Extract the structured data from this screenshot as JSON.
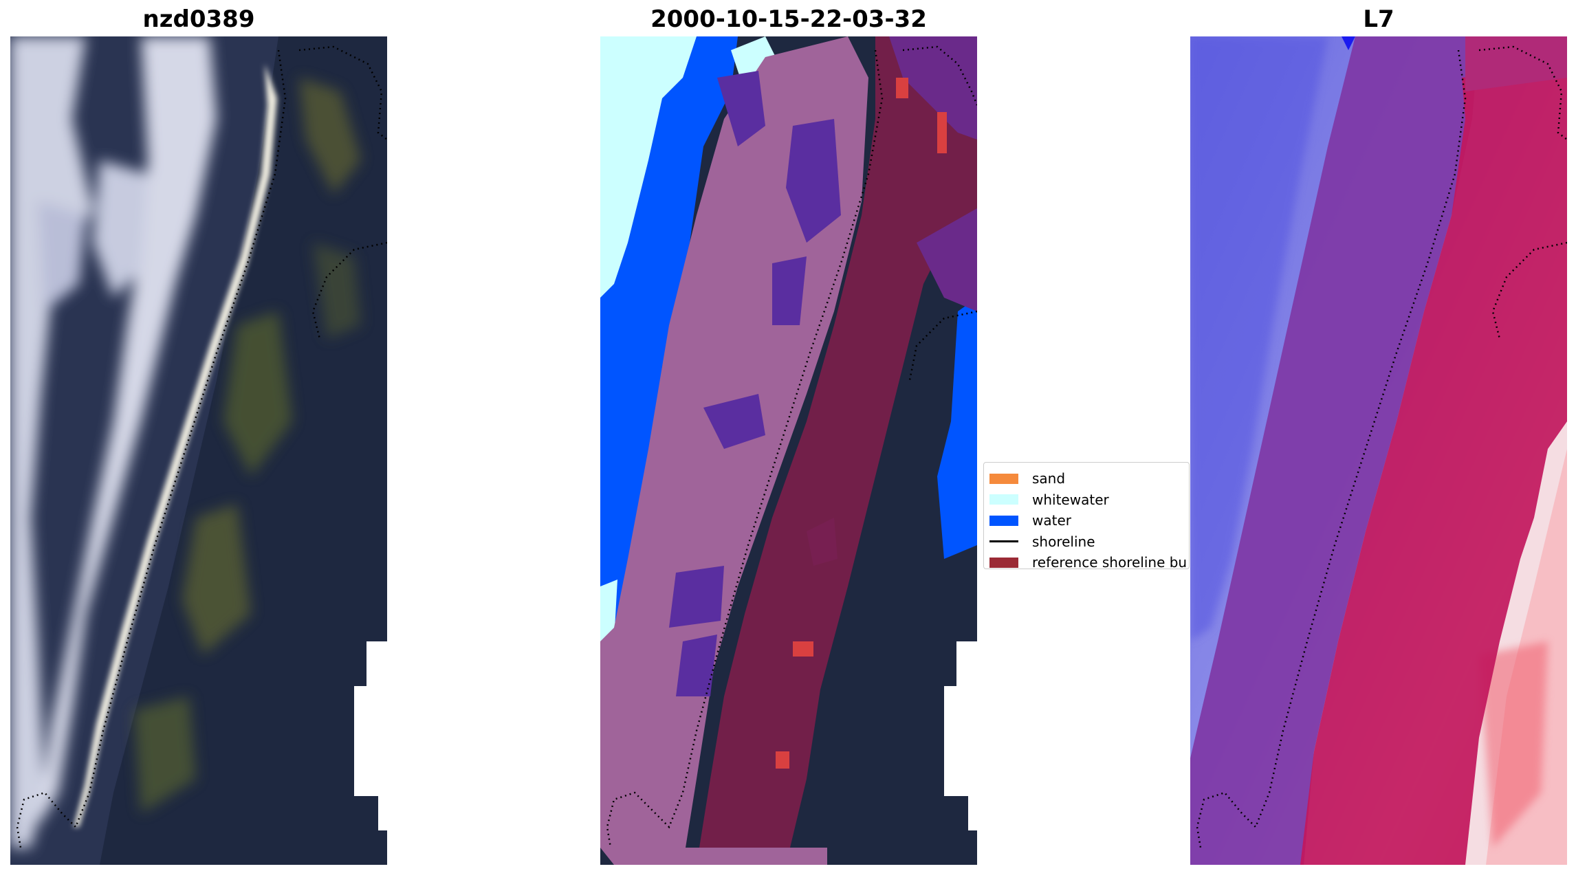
{
  "panels": [
    {
      "title": "nzd0389"
    },
    {
      "title": "2000-10-15-22-03-32"
    },
    {
      "title": "L7"
    }
  ],
  "legend": {
    "items": [
      {
        "label": "sand",
        "color": "#f58a3c",
        "kind": "patch"
      },
      {
        "label": "whitewater",
        "color": "#ccffff",
        "kind": "patch"
      },
      {
        "label": "water",
        "color": "#0055ff",
        "kind": "patch"
      },
      {
        "label": "shoreline",
        "color": "#000000",
        "kind": "line"
      },
      {
        "label": "reference shoreline bu",
        "color": "#9b2a35",
        "kind": "patch"
      }
    ]
  }
}
